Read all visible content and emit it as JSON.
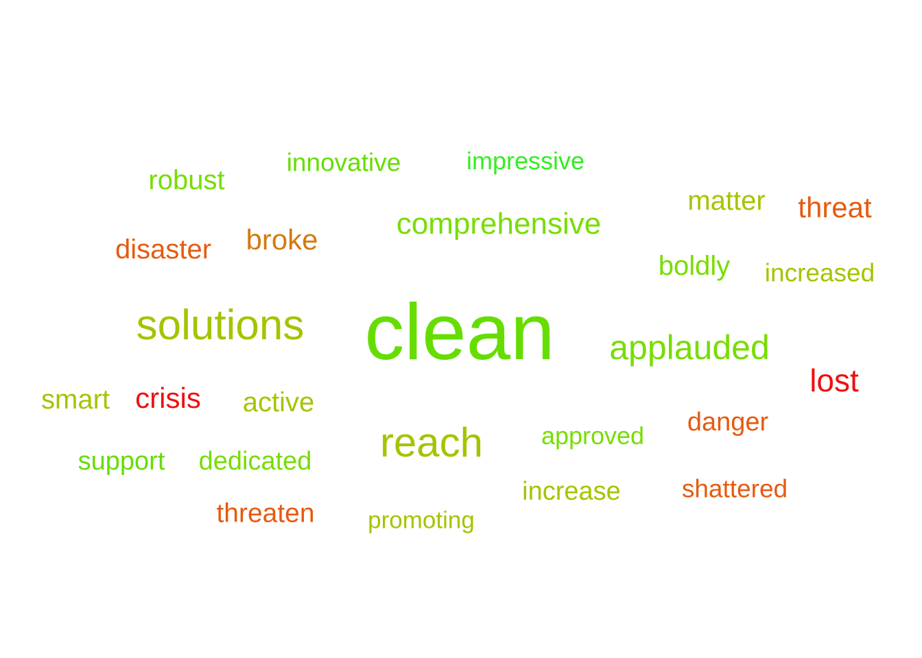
{
  "words": [
    {
      "text": "clean",
      "color": "#66dd00"
    },
    {
      "text": "solutions",
      "color": "#a4c400"
    },
    {
      "text": "reach",
      "color": "#a4c400"
    },
    {
      "text": "applauded",
      "color": "#77dd00"
    },
    {
      "text": "comprehensive",
      "color": "#77dd00"
    },
    {
      "text": "lost",
      "color": "#ee1010"
    },
    {
      "text": "robust",
      "color": "#77dd00"
    },
    {
      "text": "innovative",
      "color": "#66dd00"
    },
    {
      "text": "impressive",
      "color": "#33ee22"
    },
    {
      "text": "matter",
      "color": "#a4c400"
    },
    {
      "text": "threat",
      "color": "#e65a10"
    },
    {
      "text": "broke",
      "color": "#d47a10"
    },
    {
      "text": "disaster",
      "color": "#e65a10"
    },
    {
      "text": "boldly",
      "color": "#77dd00"
    },
    {
      "text": "increased",
      "color": "#a4c400"
    },
    {
      "text": "smart",
      "color": "#a4c400"
    },
    {
      "text": "crisis",
      "color": "#ee1010"
    },
    {
      "text": "active",
      "color": "#a4c400"
    },
    {
      "text": "danger",
      "color": "#e65a10"
    },
    {
      "text": "approved",
      "color": "#77dd00"
    },
    {
      "text": "support",
      "color": "#66dd00"
    },
    {
      "text": "dedicated",
      "color": "#77dd00"
    },
    {
      "text": "increase",
      "color": "#a4c400"
    },
    {
      "text": "shattered",
      "color": "#e65a10"
    },
    {
      "text": "threaten",
      "color": "#e65a10"
    },
    {
      "text": "promoting",
      "color": "#a4c400"
    }
  ]
}
